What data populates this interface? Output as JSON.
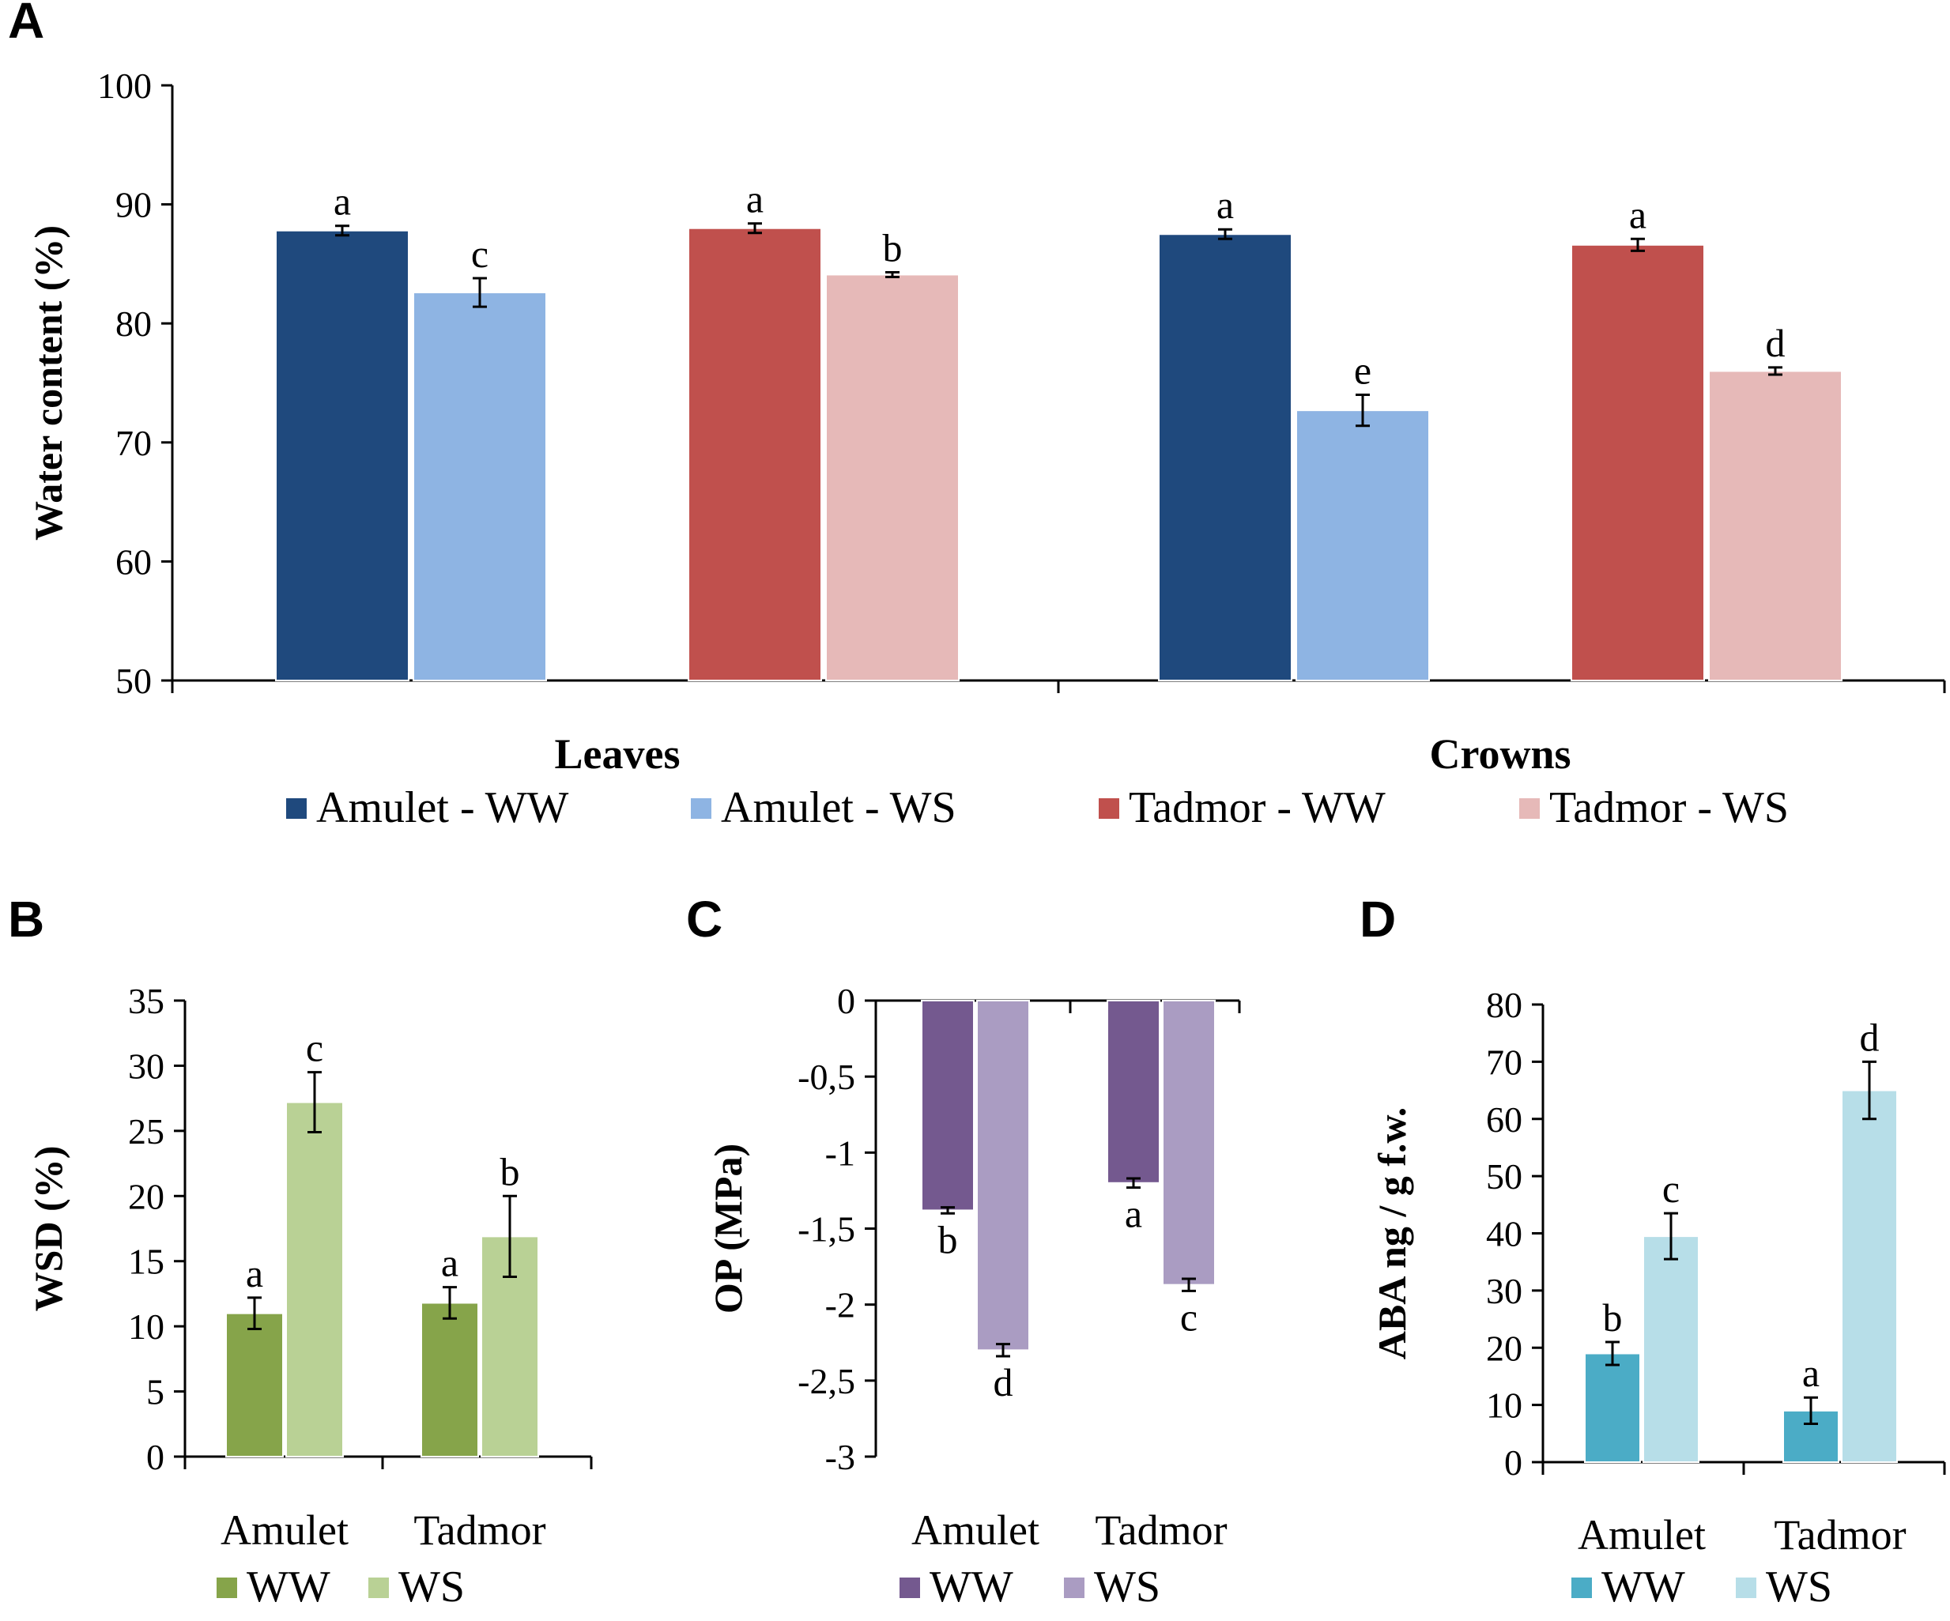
{
  "colors": {
    "amulet_ww": "#1f497d",
    "amulet_ws": "#8eb4e3",
    "tadmor_ww": "#c0504d",
    "tadmor_ws": "#e6b9b8",
    "wsd_ww": "#86a44a",
    "wsd_ws": "#b9d195",
    "op_ww": "#74598f",
    "op_ws": "#aa9cc2",
    "aba_ww": "#4bacc6",
    "aba_ws": "#b7dee8"
  },
  "chart_data": [
    {
      "panel": "A",
      "type": "bar",
      "title": "",
      "xlabel": "",
      "ylabel": "Water content (%)",
      "ylim": [
        50,
        100
      ],
      "yticks": [
        "50",
        "60",
        "70",
        "80",
        "90",
        "100"
      ],
      "categories": [
        "Leaves",
        "Crowns"
      ],
      "series": [
        {
          "name": "Amulet - WW",
          "values": [
            87.8,
            87.5
          ],
          "errors": [
            0.4,
            0.4
          ],
          "letters": [
            "a",
            "a"
          ]
        },
        {
          "name": "Amulet - WS",
          "values": [
            82.6,
            72.7
          ],
          "errors": [
            1.2,
            1.3
          ],
          "letters": [
            "c",
            "e"
          ]
        },
        {
          "name": "Tadmor - WW",
          "values": [
            88.0,
            86.6
          ],
          "errors": [
            0.4,
            0.5
          ],
          "letters": [
            "a",
            "a"
          ]
        },
        {
          "name": "Tadmor - WS",
          "values": [
            84.1,
            76.0
          ],
          "errors": [
            0.2,
            0.3
          ],
          "letters": [
            "b",
            "d"
          ]
        }
      ],
      "legend": "bottom"
    },
    {
      "panel": "B",
      "type": "bar",
      "title": "",
      "xlabel": "",
      "ylabel": "WSD (%)",
      "ylim": [
        0,
        35
      ],
      "yticks": [
        "0",
        "5",
        "10",
        "15",
        "20",
        "25",
        "30",
        "35"
      ],
      "categories": [
        "Amulet",
        "Tadmor"
      ],
      "series": [
        {
          "name": "WW",
          "values": [
            11.0,
            11.8
          ],
          "errors": [
            1.2,
            1.2
          ],
          "letters": [
            "a",
            "a"
          ]
        },
        {
          "name": "WS",
          "values": [
            27.2,
            16.9
          ],
          "errors": [
            2.3,
            3.1
          ],
          "letters": [
            "c",
            "b"
          ]
        }
      ],
      "legend": "bottom"
    },
    {
      "panel": "C",
      "type": "bar",
      "title": "",
      "xlabel": "",
      "ylabel": "OP (MPa)",
      "ylim": [
        -3,
        0
      ],
      "yticks": [
        "0",
        "-0,5",
        "-1",
        "-1,5",
        "-2",
        "-2,5",
        "-3"
      ],
      "categories": [
        "Amulet",
        "Tadmor"
      ],
      "series": [
        {
          "name": "WW",
          "values": [
            -1.38,
            -1.2
          ],
          "errors": [
            0.02,
            0.03
          ],
          "letters": [
            "b",
            "a"
          ]
        },
        {
          "name": "WS",
          "values": [
            -2.3,
            -1.87
          ],
          "errors": [
            0.04,
            0.04
          ],
          "letters": [
            "d",
            "c"
          ]
        }
      ],
      "legend": "bottom"
    },
    {
      "panel": "D",
      "type": "bar",
      "title": "",
      "xlabel": "",
      "ylabel": "ABA ng / g f.w.",
      "ylim": [
        0,
        80
      ],
      "yticks": [
        "0",
        "10",
        "20",
        "30",
        "40",
        "50",
        "60",
        "70",
        "80"
      ],
      "categories": [
        "Amulet",
        "Tadmor"
      ],
      "series": [
        {
          "name": "WW",
          "values": [
            19.0,
            9.0
          ],
          "errors": [
            2.0,
            2.3
          ],
          "letters": [
            "b",
            "a"
          ]
        },
        {
          "name": "WS",
          "values": [
            39.5,
            65.0
          ],
          "errors": [
            4.0,
            5.0
          ],
          "letters": [
            "c",
            "d"
          ]
        }
      ],
      "legend": "bottom"
    }
  ]
}
